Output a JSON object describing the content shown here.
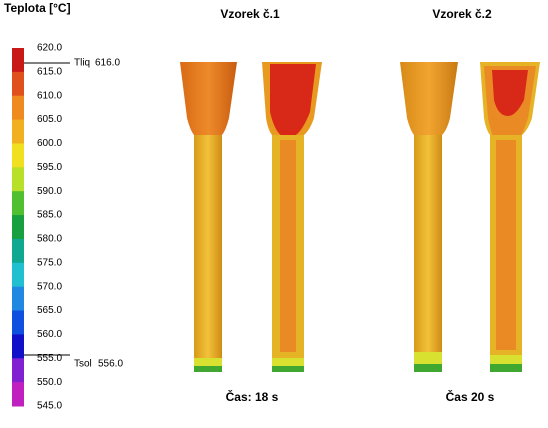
{
  "legend": {
    "title": "Teplota [°C]",
    "ticks": [
      "620.0",
      "615.0",
      "610.0",
      "605.0",
      "600.0",
      "595.0",
      "590.0",
      "585.0",
      "580.0",
      "575.0",
      "570.0",
      "565.0",
      "560.0",
      "555.0",
      "550.0",
      "545.0"
    ],
    "liquidus": {
      "label": "Tliq",
      "value": "616.0"
    },
    "solidus": {
      "label": "Tsol",
      "value": "556.0"
    }
  },
  "samples": [
    {
      "title": "Vzorek č.1",
      "time": "Čas: 18 s"
    },
    {
      "title": "Vzorek č.2",
      "time": "Čas 20 s"
    }
  ]
}
